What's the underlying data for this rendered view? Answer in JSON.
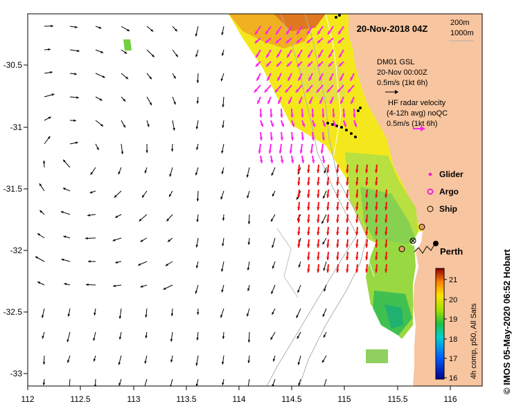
{
  "map": {
    "title": "20-Nov-2018 04Z",
    "depth_contours": [
      "200m",
      "1000m"
    ],
    "x_ticks": [
      "112",
      "112.5",
      "113",
      "113.5",
      "114",
      "114.5",
      "115",
      "115.5",
      "116"
    ],
    "y_ticks": [
      "-30.5",
      "-31",
      "-31.5",
      "-32",
      "-32.5",
      "-33"
    ],
    "model_annotation": {
      "line1": "DM01 GSL",
      "line2": "20-Nov 00:00Z",
      "line3": "0.5m/s (1kt 6h)"
    },
    "radar_annotation": {
      "line1": "HF radar velocity",
      "line2": "(4-12h avg) noQC",
      "line3": "0.5m/s (1kt 6h)"
    },
    "legend": {
      "glider": "Glider",
      "argo": "Argo",
      "ship": "Ship"
    },
    "city": "Perth",
    "colorbar": {
      "label": "4h comp, p50, All Sats",
      "ticks": [
        "21",
        "20",
        "19",
        "18",
        "17",
        "16"
      ]
    },
    "credit": "© IMOS 05-May-2020 06:52 Hobart",
    "colors": {
      "land": "#f7c59f",
      "model_arrow": "#000000",
      "radar_magenta": "#ff22ee",
      "radar_red": "#ee1111",
      "glider": "#ee22cc",
      "ship_fill": "#e8a060"
    }
  }
}
